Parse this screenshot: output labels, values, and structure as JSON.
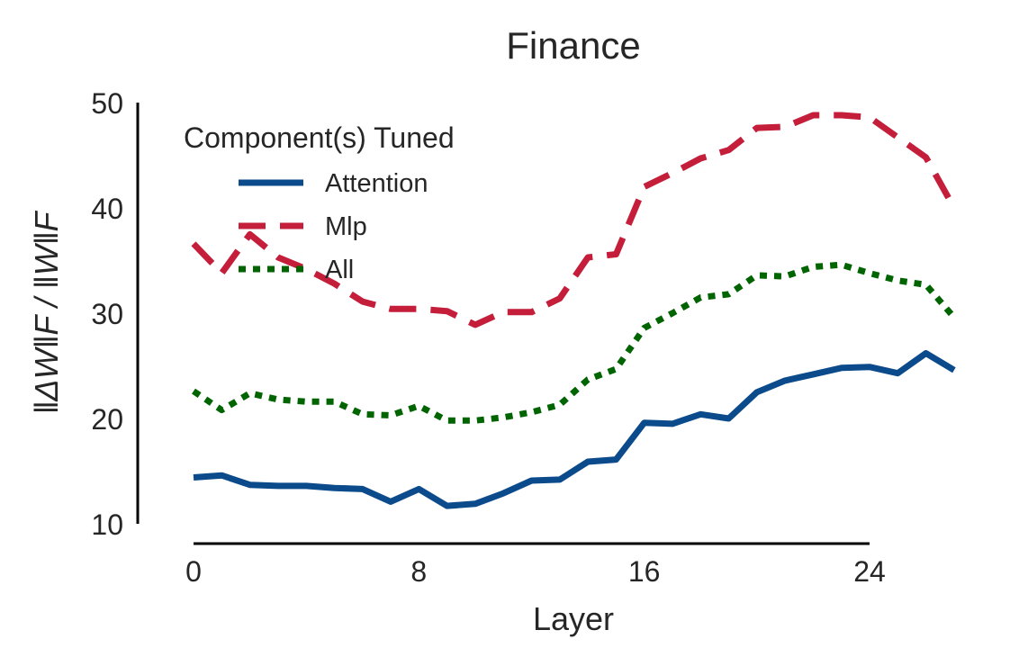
{
  "chart_data": {
    "type": "line",
    "title": "Finance",
    "xlabel": "Layer",
    "ylabel": "‖ΔW‖F / ‖W‖F",
    "xlim": [
      0,
      24
    ],
    "ylim": [
      10,
      50
    ],
    "xticks": [
      0,
      8,
      16,
      24
    ],
    "yticks": [
      10,
      20,
      30,
      40,
      50
    ],
    "legend_title": "Component(s) Tuned",
    "legend_position": "top-left",
    "grid": false,
    "x": [
      0,
      1,
      2,
      3,
      4,
      5,
      6,
      7,
      8,
      9,
      10,
      11,
      12,
      13,
      14,
      15,
      16,
      17,
      18,
      19,
      20,
      21,
      22,
      23,
      24,
      25,
      26,
      27
    ],
    "series": [
      {
        "name": "Attention",
        "color": "#0b4a8b",
        "style": "solid",
        "values": [
          14.4,
          14.6,
          13.7,
          13.6,
          13.6,
          13.4,
          13.3,
          12.1,
          13.3,
          11.7,
          11.9,
          12.9,
          14.1,
          14.2,
          15.9,
          16.1,
          19.6,
          19.5,
          20.4,
          20.0,
          22.5,
          23.6,
          24.2,
          24.8,
          24.9,
          24.3,
          26.2,
          24.6
        ]
      },
      {
        "name": "Mlp",
        "color": "#c41e3a",
        "style": "dashed",
        "values": [
          36.6,
          33.8,
          37.5,
          35.3,
          34.2,
          32.8,
          31.1,
          30.4,
          30.4,
          30.2,
          28.9,
          30.1,
          30.1,
          31.4,
          35.3,
          35.6,
          42.0,
          43.3,
          44.7,
          45.5,
          47.6,
          47.7,
          48.8,
          48.8,
          48.6,
          46.7,
          44.8,
          40.0
        ]
      },
      {
        "name": "All",
        "color": "#006400",
        "style": "dotted",
        "values": [
          22.6,
          20.8,
          22.4,
          21.8,
          21.6,
          21.6,
          20.4,
          20.3,
          21.2,
          19.8,
          19.8,
          20.1,
          20.6,
          21.3,
          23.7,
          24.7,
          28.6,
          30.0,
          31.5,
          31.8,
          33.6,
          33.5,
          34.4,
          34.6,
          33.8,
          33.1,
          32.7,
          29.6
        ]
      }
    ]
  }
}
